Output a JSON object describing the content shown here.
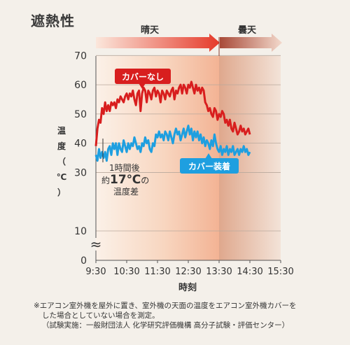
{
  "header": {
    "title": "遮熱性"
  },
  "chart_data": {
    "type": "line",
    "xlabel": "時刻",
    "ylabel": "温度（℃）",
    "ylabel_chars": [
      "温",
      "度",
      "（",
      "℃",
      "）"
    ],
    "x_ticks": [
      "9:30",
      "10:30",
      "11:30",
      "12:30",
      "13:30",
      "14:30",
      "15:30"
    ],
    "y_ticks": [
      0,
      10,
      30,
      40,
      50,
      60,
      70
    ],
    "axis_break": "≈",
    "periods": [
      {
        "label": "晴天",
        "from": "9:30",
        "to": "13:30"
      },
      {
        "label": "曇天",
        "from": "13:30",
        "to": "15:30"
      }
    ],
    "series": [
      {
        "name": "カバーなし",
        "color": "#d81e1e",
        "points": [
          [
            0,
            39
          ],
          [
            0.05,
            45
          ],
          [
            0.1,
            48
          ],
          [
            0.15,
            47
          ],
          [
            0.2,
            52
          ],
          [
            0.25,
            50
          ],
          [
            0.3,
            54
          ],
          [
            0.35,
            51
          ],
          [
            0.4,
            53
          ],
          [
            0.45,
            51
          ],
          [
            0.5,
            54
          ],
          [
            0.55,
            53
          ],
          [
            0.6,
            54
          ],
          [
            0.65,
            52
          ],
          [
            0.7,
            55
          ],
          [
            0.75,
            54
          ],
          [
            0.8,
            56
          ],
          [
            0.85,
            55
          ],
          [
            0.9,
            54
          ],
          [
            0.95,
            56
          ],
          [
            1.0,
            57
          ],
          [
            1.05,
            55
          ],
          [
            1.1,
            57
          ],
          [
            1.15,
            56
          ],
          [
            1.2,
            58
          ],
          [
            1.25,
            55
          ],
          [
            1.3,
            53
          ],
          [
            1.35,
            57
          ],
          [
            1.4,
            58
          ],
          [
            1.45,
            51
          ],
          [
            1.5,
            57
          ],
          [
            1.55,
            59
          ],
          [
            1.6,
            58
          ],
          [
            1.65,
            54
          ],
          [
            1.7,
            58
          ],
          [
            1.75,
            57
          ],
          [
            1.8,
            55
          ],
          [
            1.85,
            58
          ],
          [
            1.9,
            59
          ],
          [
            1.95,
            56
          ],
          [
            2.0,
            58
          ],
          [
            2.05,
            57
          ],
          [
            2.1,
            54
          ],
          [
            2.15,
            58
          ],
          [
            2.2,
            57
          ],
          [
            2.25,
            55
          ],
          [
            2.3,
            58
          ],
          [
            2.35,
            57
          ],
          [
            2.4,
            56
          ],
          [
            2.45,
            58
          ],
          [
            2.5,
            59
          ],
          [
            2.55,
            55
          ],
          [
            2.6,
            58
          ],
          [
            2.65,
            57
          ],
          [
            2.7,
            59
          ],
          [
            2.75,
            60
          ],
          [
            2.8,
            57
          ],
          [
            2.85,
            60
          ],
          [
            2.9,
            59
          ],
          [
            2.95,
            57
          ],
          [
            3.0,
            60
          ],
          [
            3.05,
            59
          ],
          [
            3.1,
            61
          ],
          [
            3.15,
            59
          ],
          [
            3.2,
            57
          ],
          [
            3.25,
            60
          ],
          [
            3.3,
            58
          ],
          [
            3.35,
            59
          ],
          [
            3.4,
            57
          ],
          [
            3.45,
            59
          ],
          [
            3.5,
            58
          ],
          [
            3.55,
            54
          ],
          [
            3.6,
            53
          ],
          [
            3.65,
            51
          ],
          [
            3.7,
            52
          ],
          [
            3.75,
            50
          ],
          [
            3.8,
            49
          ],
          [
            3.85,
            52
          ],
          [
            3.9,
            51
          ],
          [
            3.95,
            48
          ],
          [
            4.0,
            50
          ],
          [
            4.05,
            49
          ],
          [
            4.1,
            51
          ],
          [
            4.15,
            50
          ],
          [
            4.2,
            47
          ],
          [
            4.25,
            48
          ],
          [
            4.3,
            46
          ],
          [
            4.35,
            48
          ],
          [
            4.4,
            45
          ],
          [
            4.45,
            44
          ],
          [
            4.5,
            47
          ],
          [
            4.55,
            45
          ],
          [
            4.6,
            43
          ],
          [
            4.65,
            44
          ],
          [
            4.7,
            46
          ],
          [
            4.75,
            44
          ],
          [
            4.8,
            45
          ],
          [
            4.85,
            43
          ],
          [
            4.9,
            44
          ],
          [
            4.95,
            45
          ],
          [
            5.0,
            43
          ]
        ]
      },
      {
        "name": "カバー装着",
        "color": "#1e9fe0",
        "points": [
          [
            0,
            36
          ],
          [
            0.05,
            34
          ],
          [
            0.1,
            38
          ],
          [
            0.15,
            35
          ],
          [
            0.2,
            37
          ],
          [
            0.25,
            35
          ],
          [
            0.3,
            37
          ],
          [
            0.35,
            34
          ],
          [
            0.4,
            38
          ],
          [
            0.45,
            39
          ],
          [
            0.5,
            36
          ],
          [
            0.55,
            40
          ],
          [
            0.6,
            38
          ],
          [
            0.65,
            40
          ],
          [
            0.7,
            36
          ],
          [
            0.75,
            40
          ],
          [
            0.8,
            38
          ],
          [
            0.85,
            37
          ],
          [
            0.9,
            41
          ],
          [
            0.95,
            39
          ],
          [
            1.0,
            37
          ],
          [
            1.05,
            40
          ],
          [
            1.1,
            38
          ],
          [
            1.15,
            40
          ],
          [
            1.2,
            39
          ],
          [
            1.25,
            42
          ],
          [
            1.3,
            40
          ],
          [
            1.35,
            38
          ],
          [
            1.4,
            39
          ],
          [
            1.45,
            37
          ],
          [
            1.5,
            40
          ],
          [
            1.55,
            39
          ],
          [
            1.6,
            42
          ],
          [
            1.65,
            40
          ],
          [
            1.7,
            41
          ],
          [
            1.75,
            38
          ],
          [
            1.8,
            37
          ],
          [
            1.85,
            40
          ],
          [
            1.9,
            39
          ],
          [
            1.95,
            43
          ],
          [
            2.0,
            42
          ],
          [
            2.05,
            44
          ],
          [
            2.1,
            42
          ],
          [
            2.15,
            43
          ],
          [
            2.2,
            41
          ],
          [
            2.25,
            44
          ],
          [
            2.3,
            43
          ],
          [
            2.35,
            41
          ],
          [
            2.4,
            44
          ],
          [
            2.45,
            42
          ],
          [
            2.5,
            40
          ],
          [
            2.55,
            43
          ],
          [
            2.6,
            45
          ],
          [
            2.65,
            43
          ],
          [
            2.7,
            44
          ],
          [
            2.75,
            41
          ],
          [
            2.8,
            43
          ],
          [
            2.85,
            45
          ],
          [
            2.9,
            42
          ],
          [
            2.95,
            44
          ],
          [
            3.0,
            46
          ],
          [
            3.05,
            43
          ],
          [
            3.1,
            45
          ],
          [
            3.15,
            41
          ],
          [
            3.2,
            44
          ],
          [
            3.25,
            42
          ],
          [
            3.3,
            44
          ],
          [
            3.35,
            41
          ],
          [
            3.4,
            43
          ],
          [
            3.45,
            40
          ],
          [
            3.5,
            42
          ],
          [
            3.55,
            39
          ],
          [
            3.6,
            41
          ],
          [
            3.65,
            40
          ],
          [
            3.7,
            38
          ],
          [
            3.75,
            41
          ],
          [
            3.8,
            39
          ],
          [
            3.85,
            43
          ],
          [
            3.9,
            40
          ],
          [
            3.95,
            38
          ],
          [
            4.0,
            37
          ],
          [
            4.05,
            39
          ],
          [
            4.1,
            36
          ],
          [
            4.15,
            38
          ],
          [
            4.2,
            37
          ],
          [
            4.25,
            39
          ],
          [
            4.3,
            36
          ],
          [
            4.35,
            38
          ],
          [
            4.4,
            37
          ],
          [
            4.45,
            39
          ],
          [
            4.5,
            36
          ],
          [
            4.55,
            37
          ],
          [
            4.6,
            38
          ],
          [
            4.65,
            36
          ],
          [
            4.7,
            38
          ],
          [
            4.75,
            37
          ],
          [
            4.8,
            39
          ],
          [
            4.85,
            37
          ],
          [
            4.9,
            38
          ],
          [
            4.95,
            36
          ],
          [
            5.0,
            37
          ]
        ]
      }
    ],
    "annotation": {
      "line1": "1時間後",
      "prefix": "約",
      "value": "17℃",
      "suffix": "の",
      "line3": "温度差"
    }
  },
  "footnote": {
    "line1": "※エアコン室外機を屋外に置き、室外機の天面の温度をエアコン室外機カバーを",
    "line2": "した場合としていない場合を測定。",
    "line3": "（試験実施：一般財団法人 化学研究評価機構 高分子試験・評価センター）"
  }
}
